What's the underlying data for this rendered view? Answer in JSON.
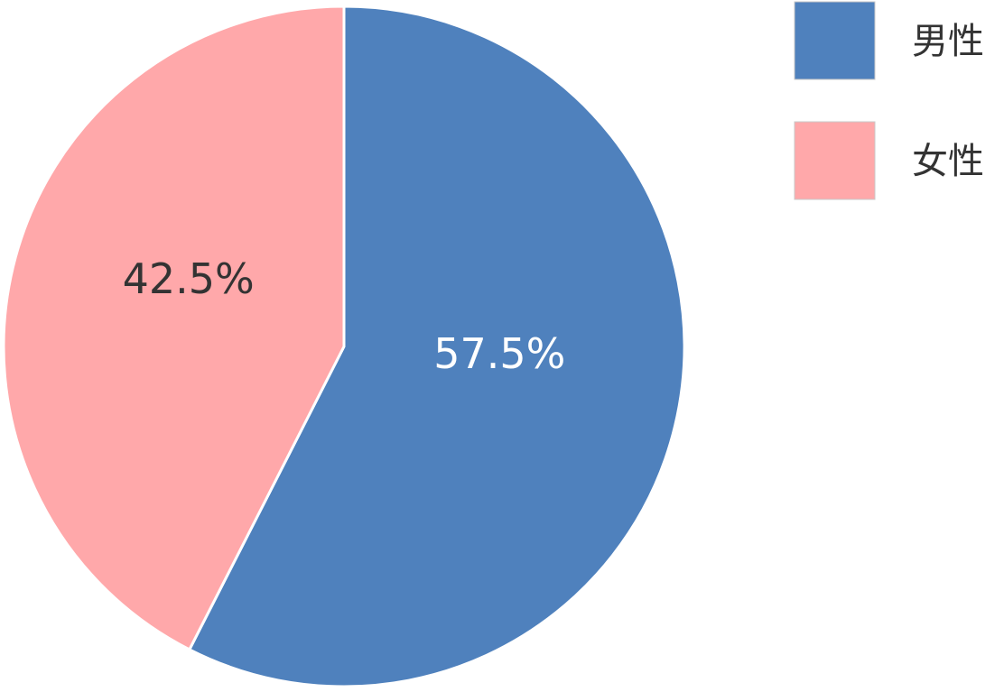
{
  "chart_data": {
    "type": "pie",
    "categories": [
      "男性",
      "女性"
    ],
    "values": [
      57.5,
      42.5
    ],
    "value_labels": [
      "57.5%",
      "42.5%"
    ],
    "colors": [
      "#4f81bd",
      "#ffa8aa"
    ],
    "label_colors": [
      "#ffffff",
      "#333333"
    ],
    "legend": "top-right"
  }
}
